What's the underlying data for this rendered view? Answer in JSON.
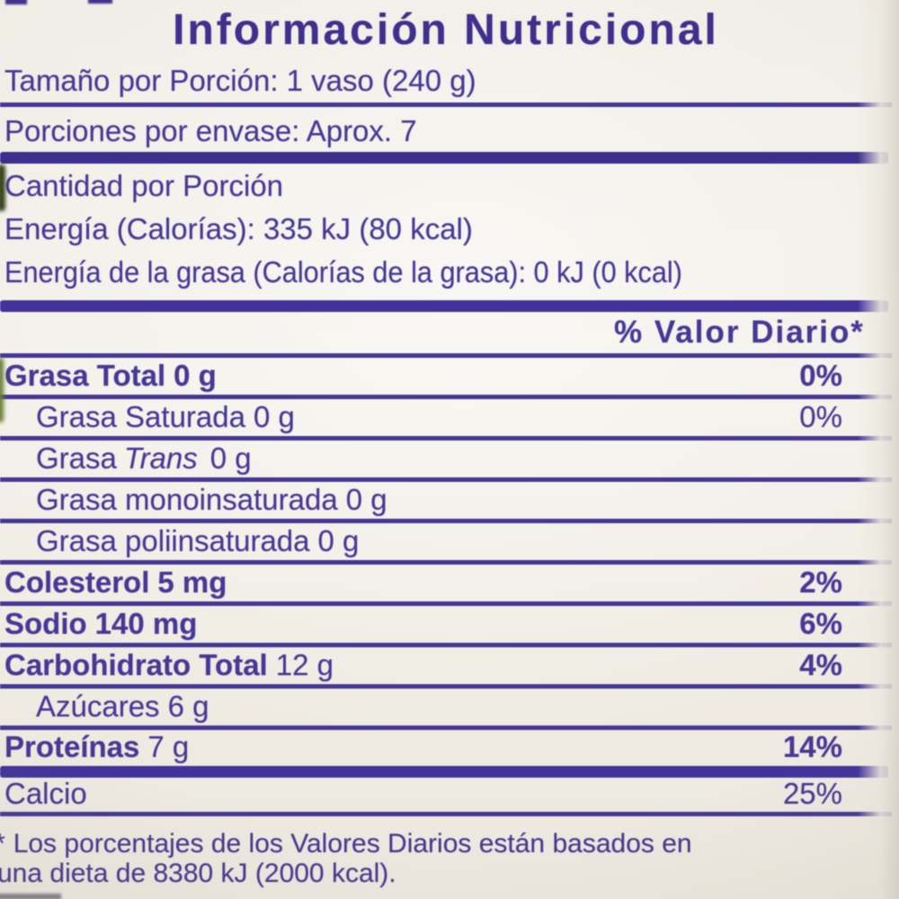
{
  "label": {
    "title": "Información Nutricional",
    "serving_size": "Tamaño por Porción: 1 vaso (240 g)",
    "servings_per_container": "Porciones por envase: Aprox. 7",
    "amount_header": "Cantidad por Porción",
    "energy": "Energía (Calorías): 335 kJ (80 kcal)",
    "energy_from_fat": "Energía de la grasa (Calorías de la grasa): 0 kJ (0 kcal)",
    "dv_header": "% Valor Diario*",
    "nutrients": [
      {
        "name": "Grasa Total",
        "amount": "0 g",
        "dv": "0%"
      },
      {
        "name": "Grasa Saturada",
        "amount": "0 g",
        "dv": "0%"
      },
      {
        "name": "Grasa",
        "italic": "Trans",
        "amount": "0 g",
        "dv": ""
      },
      {
        "name": "Grasa monoinsaturada",
        "amount": "0 g",
        "dv": ""
      },
      {
        "name": "Grasa poliinsaturada",
        "amount": "0 g",
        "dv": ""
      },
      {
        "name": "Colesterol",
        "amount": "5 mg",
        "dv": "2%"
      },
      {
        "name": "Sodio",
        "amount": "140 mg",
        "dv": "6%"
      },
      {
        "name": "Carbohidrato Total",
        "amount": "12 g",
        "dv": "4%"
      },
      {
        "name": "Azúcares",
        "amount": "6 g",
        "dv": ""
      },
      {
        "name": "Proteínas",
        "amount": "7 g",
        "dv": "14%"
      },
      {
        "name": "Calcio",
        "amount": "",
        "dv": "25%"
      }
    ],
    "footnote_marker": "*",
    "footnote_lines": [
      "Los porcentajes de los Valores Diarios están basados en",
      "una dieta de 8380 kJ (2000 kcal)."
    ],
    "colors": {
      "text_purple": "#473896",
      "title_purple": "#40308d",
      "divider_purple": "#42339b",
      "background_cream": "#f0ece4"
    }
  }
}
